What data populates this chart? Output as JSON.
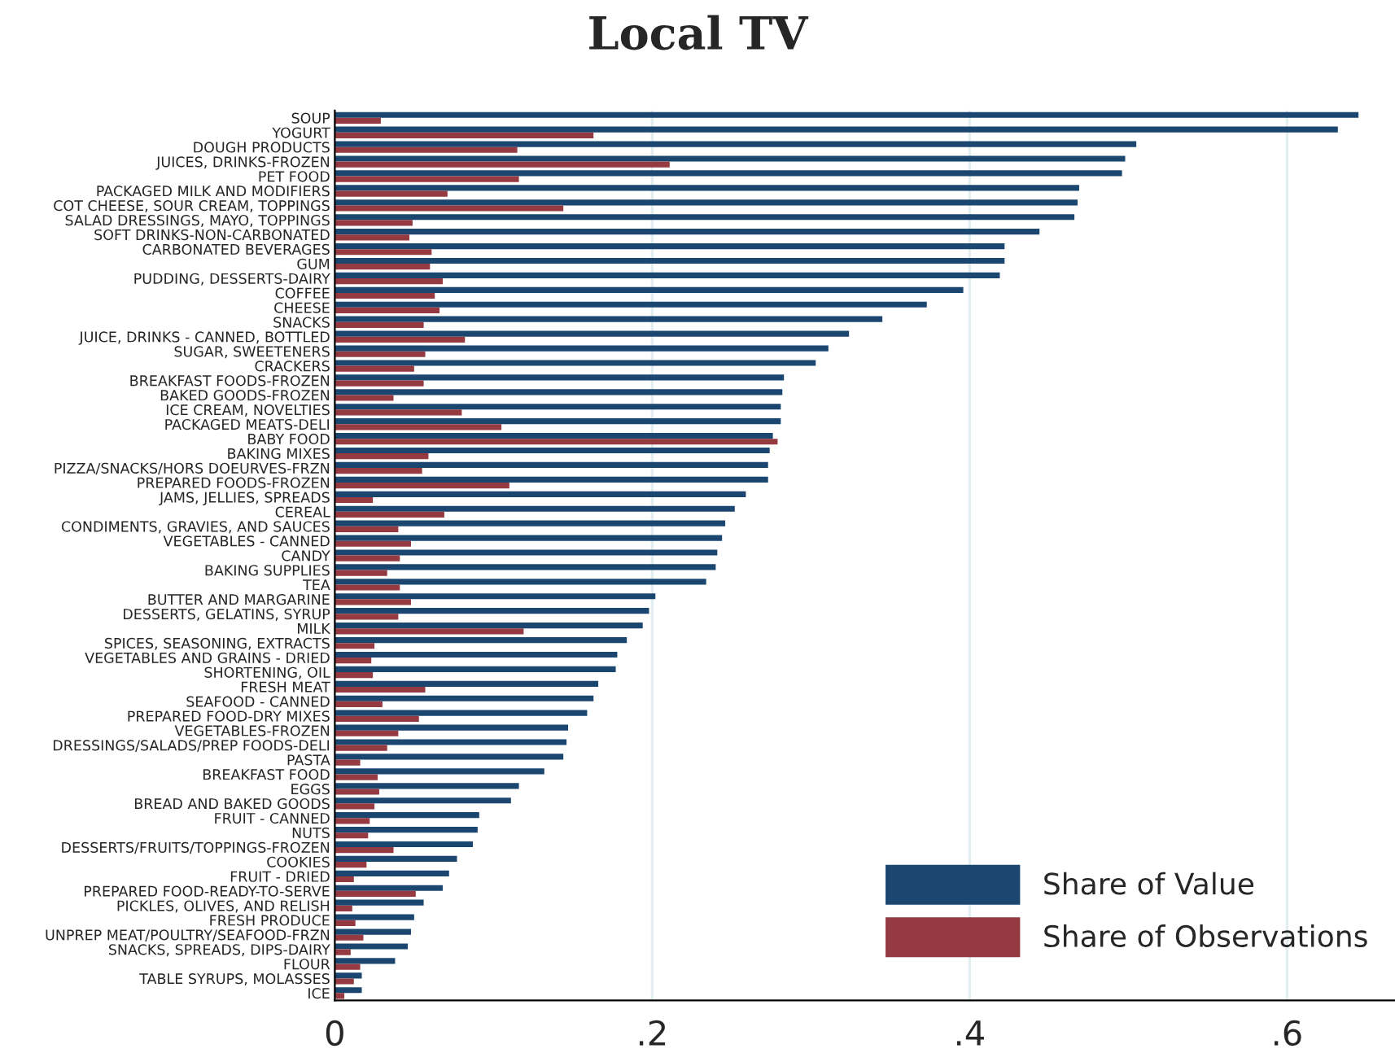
{
  "chart_data": {
    "type": "bar",
    "orientation": "horizontal",
    "title": "Local TV",
    "categories": [
      "SOUP",
      "YOGURT",
      "DOUGH PRODUCTS",
      "JUICES, DRINKS-FROZEN",
      "PET FOOD",
      "PACKAGED MILK AND MODIFIERS",
      "COT CHEESE, SOUR CREAM, TOPPINGS",
      "SALAD DRESSINGS, MAYO, TOPPINGS",
      "SOFT DRINKS-NON-CARBONATED",
      "CARBONATED BEVERAGES",
      "GUM",
      "PUDDING, DESSERTS-DAIRY",
      "COFFEE",
      "CHEESE",
      "SNACKS",
      "JUICE, DRINKS - CANNED, BOTTLED",
      "SUGAR, SWEETENERS",
      "CRACKERS",
      "BREAKFAST FOODS-FROZEN",
      "BAKED GOODS-FROZEN",
      "ICE CREAM, NOVELTIES",
      "PACKAGED MEATS-DELI",
      "BABY FOOD",
      "BAKING MIXES",
      "PIZZA/SNACKS/HORS DOEURVES-FRZN",
      "PREPARED FOODS-FROZEN",
      "JAMS, JELLIES, SPREADS",
      "CEREAL",
      "CONDIMENTS, GRAVIES, AND SAUCES",
      "VEGETABLES - CANNED",
      "CANDY",
      "BAKING SUPPLIES",
      "TEA",
      "BUTTER AND MARGARINE",
      "DESSERTS, GELATINS, SYRUP",
      "MILK",
      "SPICES, SEASONING, EXTRACTS",
      "VEGETABLES AND GRAINS - DRIED",
      "SHORTENING, OIL",
      "FRESH MEAT",
      "SEAFOOD - CANNED",
      "PREPARED FOOD-DRY MIXES",
      "VEGETABLES-FROZEN",
      "DRESSINGS/SALADS/PREP FOODS-DELI",
      "PASTA",
      "BREAKFAST FOOD",
      "EGGS",
      "BREAD AND BAKED GOODS",
      "FRUIT - CANNED",
      "NUTS",
      "DESSERTS/FRUITS/TOPPINGS-FROZEN",
      "COOKIES",
      "FRUIT - DRIED",
      "PREPARED FOOD-READY-TO-SERVE",
      "PICKLES, OLIVES, AND RELISH",
      "FRESH PRODUCE",
      "UNPREP MEAT/POULTRY/SEAFOOD-FRZN",
      "SNACKS, SPREADS, DIPS-DAIRY",
      "FLOUR",
      "TABLE SYRUPS, MOLASSES",
      "ICE"
    ],
    "series": [
      {
        "name": "Share of Value",
        "color": "#1a4670",
        "values": [
          0.645,
          0.632,
          0.505,
          0.498,
          0.496,
          0.469,
          0.468,
          0.466,
          0.444,
          0.422,
          0.422,
          0.419,
          0.396,
          0.373,
          0.345,
          0.324,
          0.311,
          0.303,
          0.283,
          0.282,
          0.281,
          0.281,
          0.276,
          0.274,
          0.273,
          0.273,
          0.259,
          0.252,
          0.246,
          0.244,
          0.241,
          0.24,
          0.234,
          0.202,
          0.198,
          0.194,
          0.184,
          0.178,
          0.177,
          0.166,
          0.163,
          0.159,
          0.147,
          0.146,
          0.144,
          0.132,
          0.116,
          0.111,
          0.091,
          0.09,
          0.087,
          0.077,
          0.072,
          0.068,
          0.056,
          0.05,
          0.048,
          0.046,
          0.038,
          0.017,
          0.017
        ]
      },
      {
        "name": "Share of Observations",
        "color": "#943a40",
        "values": [
          0.029,
          0.163,
          0.115,
          0.211,
          0.116,
          0.071,
          0.144,
          0.049,
          0.047,
          0.061,
          0.06,
          0.068,
          0.063,
          0.066,
          0.056,
          0.082,
          0.057,
          0.05,
          0.056,
          0.037,
          0.08,
          0.105,
          0.279,
          0.059,
          0.055,
          0.11,
          0.024,
          0.069,
          0.04,
          0.048,
          0.041,
          0.033,
          0.041,
          0.048,
          0.04,
          0.119,
          0.025,
          0.023,
          0.024,
          0.057,
          0.03,
          0.053,
          0.04,
          0.033,
          0.016,
          0.027,
          0.028,
          0.025,
          0.022,
          0.021,
          0.037,
          0.02,
          0.012,
          0.051,
          0.011,
          0.013,
          0.018,
          0.01,
          0.016,
          0.012,
          0.006
        ]
      }
    ],
    "xlim": [
      0,
      0.668
    ],
    "xticks": [
      0,
      {
        "value": 0.2,
        "label": ".2"
      },
      {
        "value": 0.4,
        "label": ".4"
      },
      {
        "value": 0.6,
        "label": ".6"
      }
    ],
    "grid": "x",
    "legend": "bottom right"
  }
}
